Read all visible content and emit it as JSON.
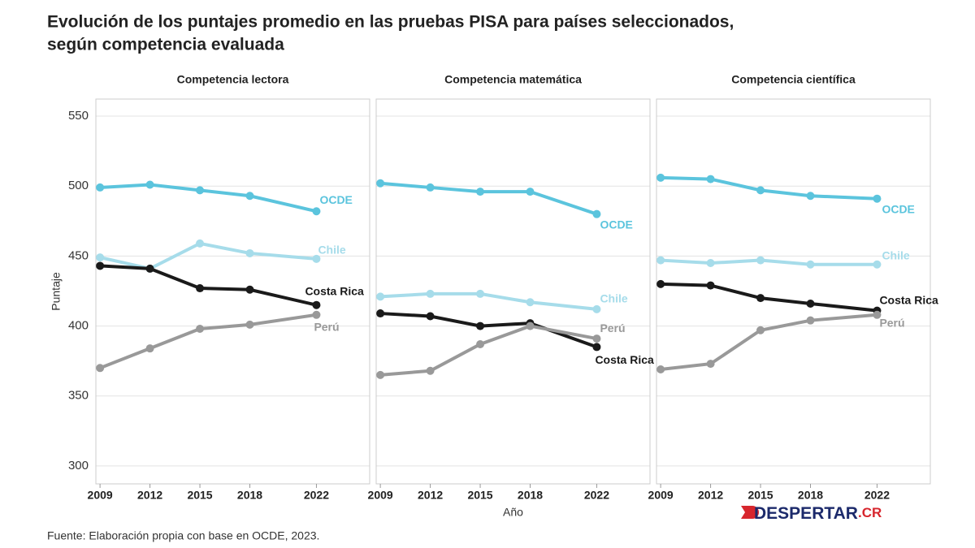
{
  "title": [
    "Evolución de los puntajes promedio en las pruebas PISA para países seleccionados,",
    "según competencia evaluada"
  ],
  "source": "Fuente: Elaboración propia con base en OCDE, 2023.",
  "logo": {
    "name": "DESPERTAR",
    "suffix": ".CR"
  },
  "chart_data": [
    {
      "type": "line",
      "subtitle": "Competencia lectora",
      "y_label": "Puntaje",
      "x": [
        2009,
        2012,
        2015,
        2018,
        2022
      ],
      "xlim": [
        2008.75,
        2025.2
      ],
      "xticks": [
        2009,
        2012,
        2015,
        2018,
        2022
      ],
      "ylim": [
        287.2,
        562.2
      ],
      "yticks": [
        300,
        350,
        400,
        450,
        500,
        550
      ],
      "grid": true,
      "series": [
        {
          "name": "OCDE",
          "color": "#5bc4dd",
          "values": [
            499,
            501,
            497,
            493,
            482
          ]
        },
        {
          "name": "Chile",
          "color": "#a6dcea",
          "values": [
            449,
            441,
            459,
            452,
            448
          ]
        },
        {
          "name": "Costa Rica",
          "color": "#1a1a1a",
          "values": [
            443,
            441,
            427,
            426,
            415
          ]
        },
        {
          "name": "Perú",
          "color": "#999999",
          "values": [
            370,
            384,
            398,
            401,
            408
          ]
        }
      ]
    },
    {
      "type": "line",
      "subtitle": "Competencia matemática",
      "x_label": "Año",
      "x": [
        2009,
        2012,
        2015,
        2018,
        2022
      ],
      "xlim": [
        2008.75,
        2025.2
      ],
      "xticks": [
        2009,
        2012,
        2015,
        2018,
        2022
      ],
      "ylim": [
        287.2,
        562.2
      ],
      "yticks": [
        300,
        350,
        400,
        450,
        500,
        550
      ],
      "grid": true,
      "series": [
        {
          "name": "OCDE",
          "color": "#5bc4dd",
          "values": [
            502,
            499,
            496,
            496,
            480
          ]
        },
        {
          "name": "Chile",
          "color": "#a6dcea",
          "values": [
            421,
            423,
            423,
            417,
            412
          ]
        },
        {
          "name": "Costa Rica",
          "color": "#1a1a1a",
          "values": [
            409,
            407,
            400,
            402,
            385
          ]
        },
        {
          "name": "Perú",
          "color": "#999999",
          "values": [
            365,
            368,
            387,
            400,
            391
          ]
        }
      ]
    },
    {
      "type": "line",
      "subtitle": "Competencia científica",
      "x": [
        2009,
        2012,
        2015,
        2018,
        2022
      ],
      "xlim": [
        2008.75,
        2025.2
      ],
      "xticks": [
        2009,
        2012,
        2015,
        2018,
        2022
      ],
      "ylim": [
        287.2,
        562.2
      ],
      "yticks": [
        300,
        350,
        400,
        450,
        500,
        550
      ],
      "grid": true,
      "series": [
        {
          "name": "OCDE",
          "color": "#5bc4dd",
          "values": [
            506,
            505,
            497,
            493,
            491
          ]
        },
        {
          "name": "Chile",
          "color": "#a6dcea",
          "values": [
            447,
            445,
            447,
            444,
            444
          ]
        },
        {
          "name": "Costa Rica",
          "color": "#1a1a1a",
          "values": [
            430,
            429,
            420,
            416,
            411
          ]
        },
        {
          "name": "Perú",
          "color": "#999999",
          "values": [
            369,
            373,
            397,
            404,
            408
          ]
        }
      ]
    }
  ]
}
